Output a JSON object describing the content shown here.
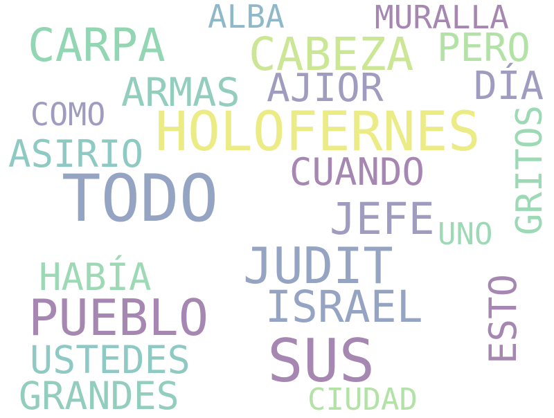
{
  "words": {
    "holofernes": {
      "text": "HOLOFERNES",
      "color": "#ecec86"
    },
    "todo": {
      "text": "TODO",
      "color": "#95a4c3"
    },
    "sus": {
      "text": "SUS",
      "color": "#a587b2"
    },
    "judit": {
      "text": "JUDIT",
      "color": "#95a4c3"
    },
    "pueblo": {
      "text": "PUEBLO",
      "color": "#a587b2"
    },
    "cabeza": {
      "text": "CABEZA",
      "color": "#cbe796"
    },
    "carpa": {
      "text": "CARPA",
      "color": "#93d6b3"
    },
    "israel": {
      "text": "ISRAEL",
      "color": "#95a4c3"
    },
    "jefe": {
      "text": "JEFE",
      "color": "#a09cc0"
    },
    "cuando": {
      "text": "CUANDO",
      "color": "#a587b2"
    },
    "armas": {
      "text": "ARMAS",
      "color": "#93cdbd"
    },
    "ajior": {
      "text": "AJIOR",
      "color": "#a09cc0"
    },
    "asirio": {
      "text": "ASIRIO",
      "color": "#8fc9c4"
    },
    "habia": {
      "text": "HABÍA",
      "color": "#9ed9b6"
    },
    "ustedes": {
      "text": "USTEDES",
      "color": "#8fc9c4"
    },
    "grandes": {
      "text": "GRANDES",
      "color": "#93cdbd"
    },
    "gritos": {
      "text": "GRITOS",
      "color": "#9ed9b6"
    },
    "esto": {
      "text": "ESTO",
      "color": "#a587b2"
    },
    "muralla": {
      "text": "MURALLA",
      "color": "#a587b2"
    },
    "alba": {
      "text": "ALBA",
      "color": "#8fb8c8"
    },
    "pero": {
      "text": "PERO",
      "color": "#b3e2a6"
    },
    "dia": {
      "text": "DÍA",
      "color": "#a09cc0"
    },
    "como": {
      "text": "COMO",
      "color": "#a09cc0"
    },
    "uno": {
      "text": "UNO",
      "color": "#9ed9b6"
    },
    "ciudad": {
      "text": "CIUDAD",
      "color": "#b3e2a6"
    }
  }
}
